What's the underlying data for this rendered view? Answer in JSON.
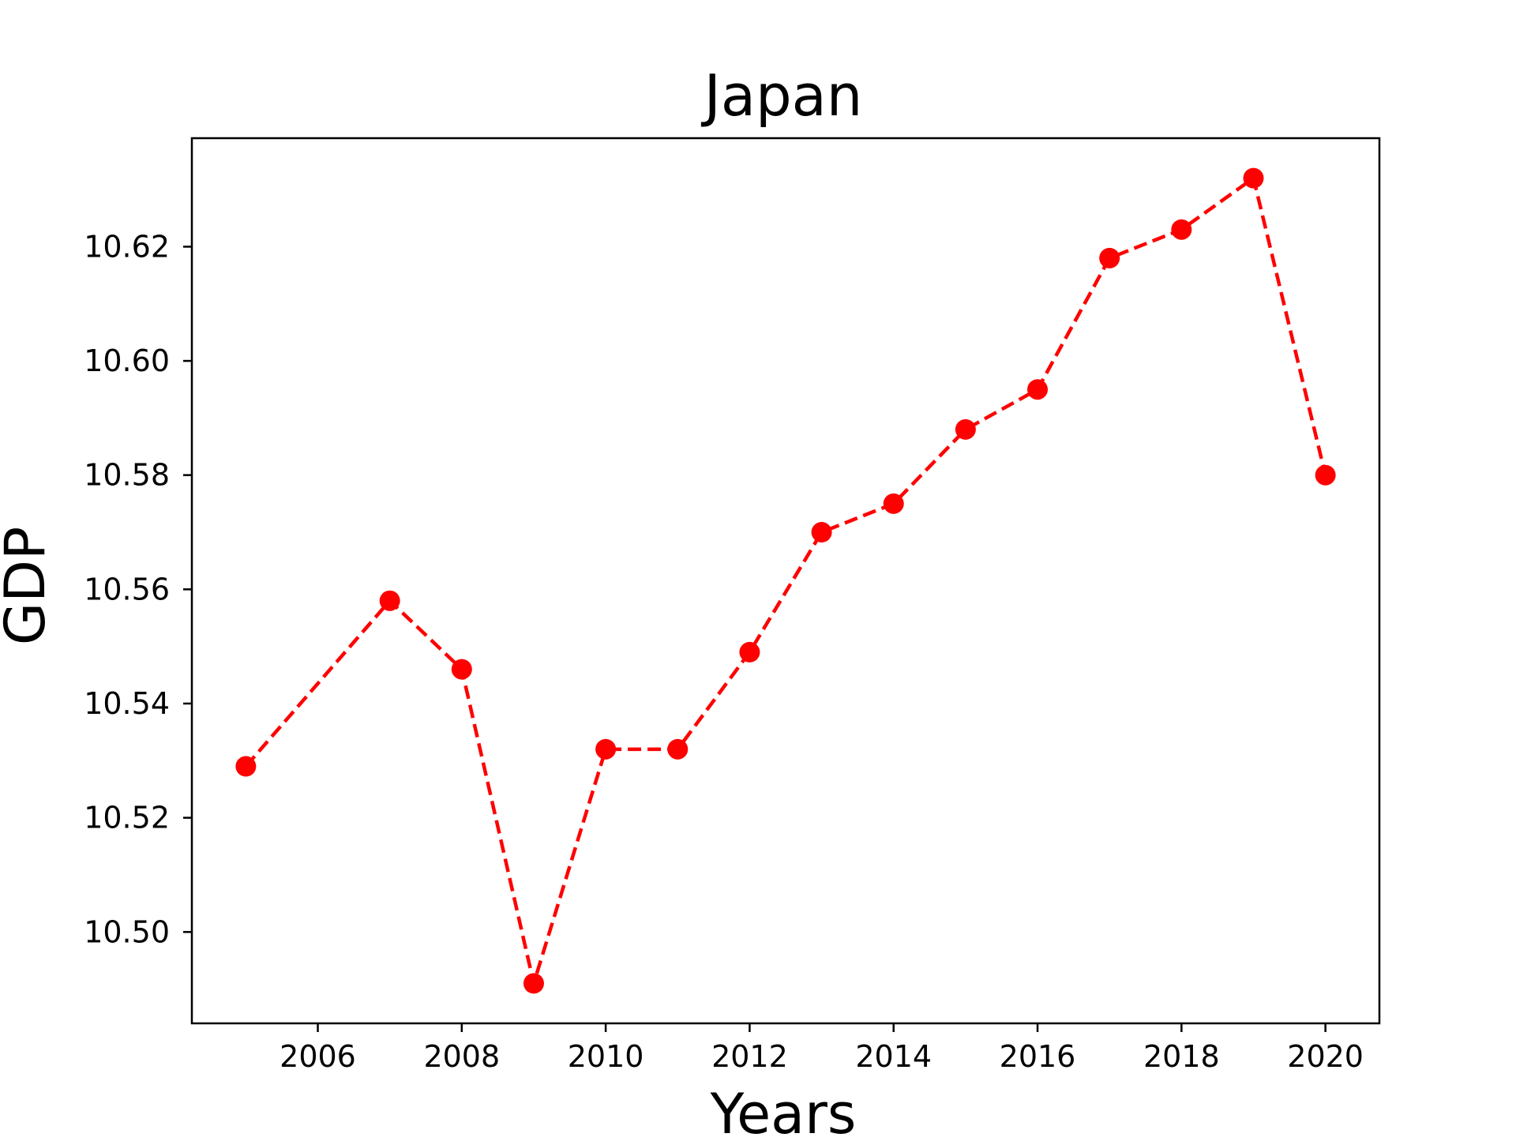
{
  "chart_data": {
    "type": "line",
    "title": "Japan",
    "xlabel": "Years",
    "ylabel": "GDP",
    "x": [
      2005,
      2007,
      2008,
      2009,
      2010,
      2011,
      2012,
      2013,
      2014,
      2015,
      2016,
      2017,
      2018,
      2019,
      2020
    ],
    "series": [
      {
        "values": [
          10.529,
          10.558,
          10.546,
          10.491,
          10.532,
          10.532,
          10.549,
          10.57,
          10.575,
          10.588,
          10.595,
          10.618,
          10.623,
          10.632,
          10.58
        ],
        "color": "#ff0000",
        "line_style": "dashed",
        "marker": "circle"
      }
    ],
    "xlim": [
      2004.25,
      2020.75
    ],
    "ylim": [
      10.484,
      10.639
    ],
    "xticks": [
      2006,
      2008,
      2010,
      2012,
      2014,
      2016,
      2018,
      2020
    ],
    "xtick_labels": [
      "2006",
      "2008",
      "2010",
      "2012",
      "2014",
      "2016",
      "2018",
      "2020"
    ],
    "yticks": [
      10.5,
      10.52,
      10.54,
      10.56,
      10.58,
      10.6,
      10.62
    ],
    "ytick_labels": [
      "10.50",
      "10.52",
      "10.54",
      "10.56",
      "10.58",
      "10.60",
      "10.62"
    ],
    "grid": false,
    "legend": false
  }
}
